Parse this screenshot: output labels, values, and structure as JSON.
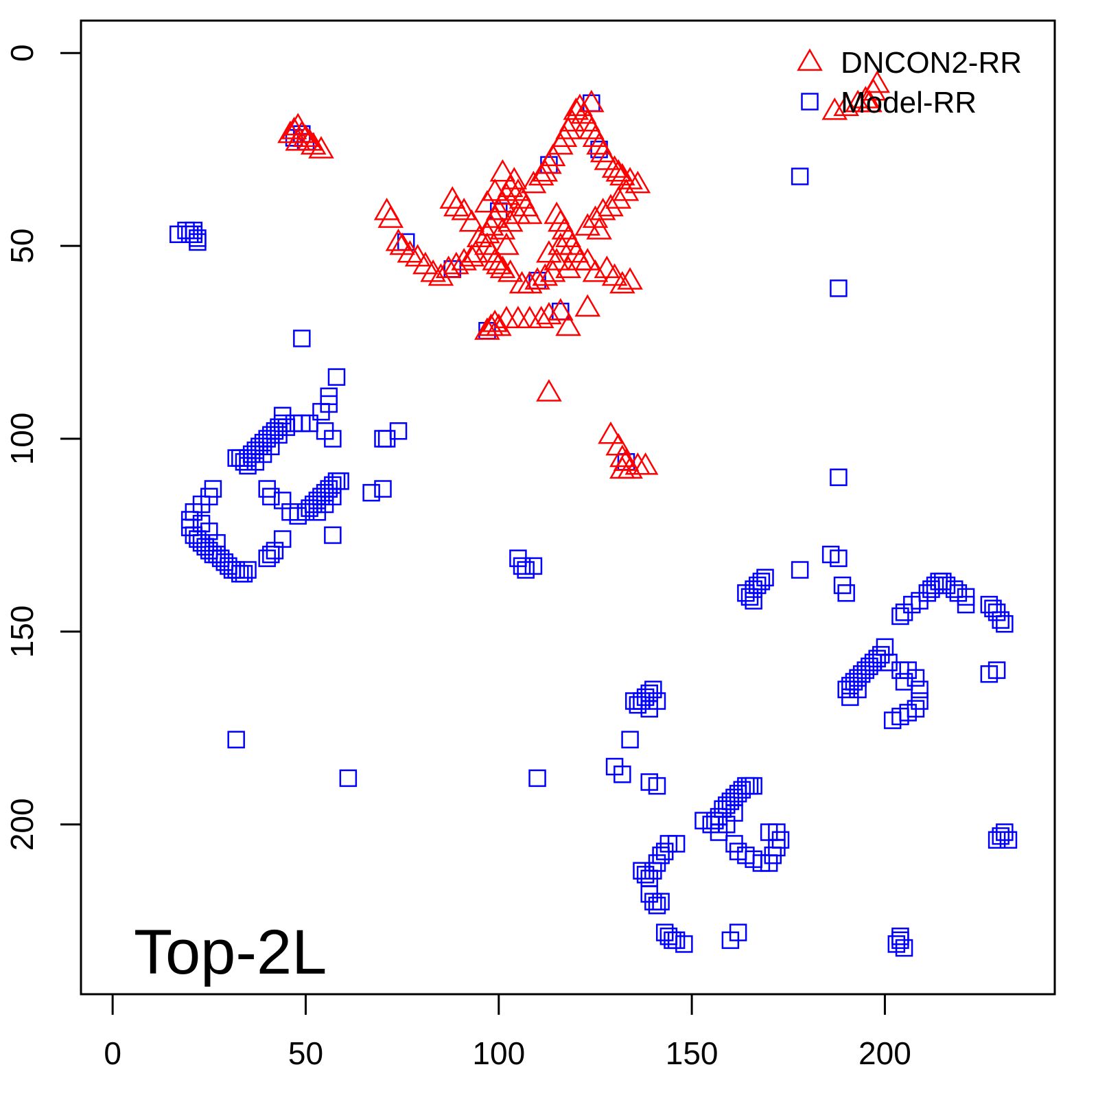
{
  "chart_data": {
    "type": "scatter",
    "annotation": "Top-2L",
    "xlim": [
      -8.2,
      244
    ],
    "ylim": [
      244,
      -8.4
    ],
    "xticks": [
      0,
      50,
      100,
      150,
      200
    ],
    "yticks": [
      0,
      50,
      100,
      150,
      200
    ],
    "legend": "topright",
    "series": [
      {
        "name": "DNCON2-RR",
        "color": "#ff0000",
        "marker": "triangle",
        "x": [
          47,
          48,
          49,
          50,
          51,
          52,
          54,
          46,
          48,
          120,
          121,
          122,
          123,
          124,
          125,
          126,
          127,
          128,
          130,
          131,
          132,
          134,
          136,
          124,
          119,
          118,
          117,
          116,
          114,
          113,
          112,
          111,
          109,
          104,
          103,
          102,
          101,
          100,
          99,
          98,
          97,
          97,
          98,
          99,
          100,
          101,
          103,
          105,
          106,
          107,
          108,
          101,
          99,
          97,
          95,
          94,
          102,
          101,
          103,
          105,
          115,
          116,
          117,
          118,
          119,
          120,
          121,
          116,
          115,
          114,
          112,
          110,
          108,
          106,
          118,
          113,
          123,
          125,
          127,
          129,
          131,
          133,
          126,
          71,
          72,
          74,
          75,
          77,
          79,
          81,
          83,
          85,
          87,
          89,
          91,
          93,
          88,
          89,
          91,
          93,
          97,
          98,
          99,
          100,
          102,
          105,
          108,
          111,
          113,
          116,
          118,
          123,
          113,
          129,
          131,
          132,
          133,
          134,
          136,
          138,
          132,
          123,
          125,
          128,
          130,
          132,
          134,
          187,
          190,
          193,
          195,
          197,
          198,
          196
        ],
        "y": [
          20,
          19,
          21,
          22,
          23,
          24,
          25,
          21,
          23,
          15,
          14,
          16,
          18,
          20,
          22,
          24,
          26,
          28,
          30,
          31,
          32,
          33,
          34,
          13,
          18,
          20,
          22,
          24,
          27,
          29,
          31,
          32,
          34,
          33,
          35,
          37,
          39,
          41,
          43,
          45,
          47,
          50,
          52,
          54,
          55,
          56,
          57,
          36,
          38,
          40,
          42,
          31,
          36,
          39,
          48,
          52,
          50,
          46,
          44,
          42,
          42,
          44,
          46,
          48,
          50,
          52,
          54,
          50,
          54,
          57,
          58,
          59,
          60,
          60,
          56,
          52,
          45,
          43,
          41,
          40,
          38,
          36,
          46,
          41,
          43,
          49,
          50,
          52,
          53,
          55,
          57,
          58,
          56,
          55,
          54,
          53,
          38,
          40,
          41,
          44,
          72,
          71,
          70,
          71,
          69,
          69,
          69,
          69,
          68,
          67,
          71,
          66,
          88,
          99,
          102,
          105,
          106,
          108,
          107,
          107,
          108,
          54,
          57,
          56,
          58,
          60,
          59,
          15,
          14,
          13,
          12,
          10,
          8,
          13
        ]
      },
      {
        "name": "Model-RR",
        "color": "#0000ff",
        "marker": "square",
        "x": [
          49,
          47,
          50,
          17,
          19,
          20,
          21,
          22,
          22,
          21,
          49,
          58,
          56,
          56,
          54,
          55,
          57,
          32,
          33,
          34,
          35,
          36,
          37,
          38,
          39,
          40,
          41,
          42,
          43,
          44,
          45,
          47,
          49,
          51,
          35,
          37,
          39,
          41,
          43,
          44,
          70,
          71,
          74,
          67,
          70,
          26,
          25,
          23,
          21,
          20,
          20,
          21,
          22,
          23,
          24,
          25,
          26,
          27,
          28,
          29,
          30,
          31,
          32,
          33,
          34,
          35,
          41,
          42,
          40,
          44,
          23,
          25,
          27,
          40,
          41,
          44,
          46,
          48,
          50,
          51,
          52,
          53,
          54,
          55,
          56,
          57,
          58,
          59,
          53,
          55,
          57,
          57,
          105,
          106,
          107,
          109,
          110,
          32,
          61,
          178,
          188,
          188,
          186,
          188,
          178,
          189,
          190,
          164,
          165,
          166,
          167,
          168,
          169,
          166,
          135,
          136,
          137,
          138,
          139,
          140,
          141,
          139,
          134,
          130,
          132,
          139,
          141,
          153,
          155,
          156,
          157,
          158,
          159,
          160,
          161,
          162,
          163,
          164,
          165,
          166,
          157,
          159,
          161,
          161,
          162,
          164,
          166,
          168,
          170,
          171,
          172,
          173,
          172,
          170,
          137,
          138,
          139,
          140,
          141,
          142,
          143,
          144,
          146,
          139,
          140,
          141,
          142,
          143,
          144,
          145,
          146,
          148,
          160,
          162,
          203,
          204,
          205,
          204,
          229,
          230,
          231,
          232,
          227,
          229,
          190,
          191,
          192,
          193,
          194,
          195,
          196,
          197,
          198,
          199,
          200,
          201,
          191,
          193,
          202,
          204,
          206,
          208,
          209,
          209,
          208,
          206,
          204,
          205,
          204,
          205,
          207,
          209,
          211,
          212,
          213,
          214,
          215,
          216,
          218,
          219,
          221,
          221,
          227,
          228,
          229,
          230,
          231,
          113,
          100,
          110,
          124,
          126,
          97,
          133,
          116,
          88,
          76
        ],
        "y": [
          21,
          22,
          23,
          47,
          46,
          47,
          46,
          48,
          49,
          47,
          74,
          84,
          89,
          91,
          93,
          98,
          100,
          105,
          105,
          106,
          105,
          104,
          103,
          102,
          101,
          100,
          99,
          98,
          97,
          96,
          97,
          96,
          96,
          96,
          107,
          106,
          104,
          102,
          99,
          94,
          100,
          100,
          98,
          114,
          113,
          113,
          115,
          117,
          119,
          121,
          123,
          125,
          126,
          127,
          128,
          129,
          130,
          130,
          131,
          132,
          133,
          134,
          134,
          135,
          135,
          134,
          130,
          129,
          131,
          126,
          122,
          124,
          127,
          113,
          115,
          116,
          119,
          120,
          119,
          118,
          117,
          116,
          115,
          114,
          113,
          112,
          111,
          111,
          119,
          117,
          115,
          125,
          131,
          133,
          134,
          133,
          188,
          178,
          188,
          32,
          61,
          110,
          130,
          131,
          134,
          138,
          140,
          140,
          141,
          142,
          138,
          137,
          136,
          139,
          168,
          169,
          168,
          167,
          166,
          165,
          168,
          170,
          178,
          185,
          187,
          189,
          190,
          199,
          200,
          199,
          198,
          196,
          195,
          194,
          193,
          192,
          191,
          190,
          190,
          190,
          202,
          200,
          197,
          205,
          207,
          208,
          209,
          210,
          210,
          208,
          206,
          204,
          202,
          202,
          212,
          213,
          214,
          212,
          210,
          208,
          207,
          205,
          205,
          218,
          220,
          221,
          220,
          228,
          229,
          230,
          230,
          231,
          230,
          228,
          231,
          230,
          232,
          229,
          204,
          203,
          202,
          204,
          161,
          160,
          165,
          164,
          163,
          162,
          161,
          160,
          159,
          158,
          157,
          156,
          154,
          158,
          167,
          165,
          173,
          172,
          171,
          170,
          168,
          165,
          162,
          160,
          160,
          163,
          146,
          145,
          143,
          142,
          140,
          139,
          138,
          137,
          137,
          138,
          139,
          140,
          141,
          143,
          143,
          144,
          145,
          147,
          148,
          29,
          41,
          59,
          13,
          25,
          72,
          106,
          67,
          56,
          49
        ]
      }
    ]
  }
}
